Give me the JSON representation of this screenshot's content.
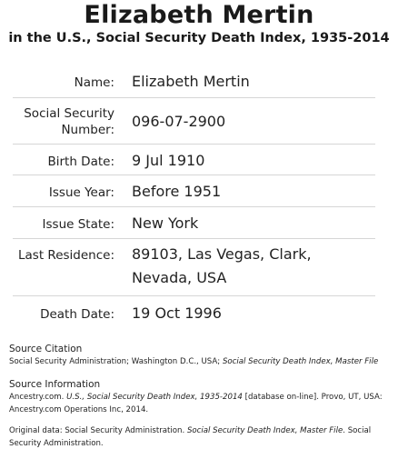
{
  "header": {
    "title": "Elizabeth Mertin",
    "subtitle": "in the U.S., Social Security Death Index, 1935-2014"
  },
  "fields": [
    {
      "label": "Name:",
      "value": "Elizabeth Mertin"
    },
    {
      "label": "Social Security Number:",
      "value": "096-07-2900"
    },
    {
      "label": "Birth Date:",
      "value": "9 Jul 1910"
    },
    {
      "label": "Issue Year:",
      "value": "Before 1951"
    },
    {
      "label": "Issue State:",
      "value": "New York"
    },
    {
      "label": "Last Residence:",
      "value": "89103, Las Vegas, Clark, Nevada, USA"
    },
    {
      "label": "Death Date:",
      "value": "19 Oct 1996"
    }
  ],
  "source_citation": {
    "heading": "Source Citation",
    "text_1": "Social Security Administration; Washington D.C., USA; ",
    "text_2": "Social Security Death Index, Master File"
  },
  "source_information": {
    "heading": "Source Information",
    "text_1": "Ancestry.com. ",
    "text_2": "U.S., Social Security Death Index, 1935-2014",
    "text_3": " [database on-line]. Provo, UT, USA: Ancestry.com Operations Inc, 2014."
  },
  "original_data": {
    "text_1": "Original data: Social Security Administration. ",
    "text_2": "Social Security Death Index, Master File",
    "text_3": ". Social Security Administration."
  }
}
